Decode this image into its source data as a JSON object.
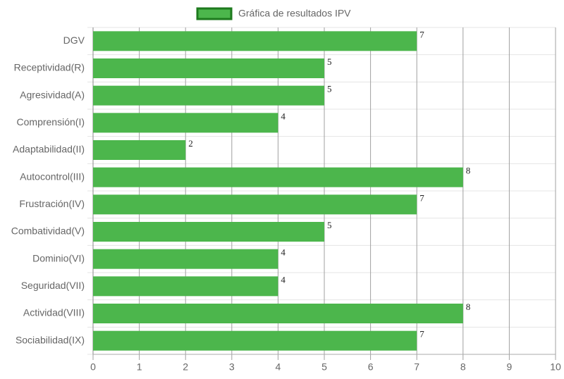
{
  "chart_data": {
    "type": "bar",
    "horizontal": true,
    "categories": [
      "DGV",
      "Receptividad(R)",
      "Agresividad(A)",
      "Comprensión(I)",
      "Adaptabilidad(II)",
      "Autocontrol(III)",
      "Frustración(IV)",
      "Combatividad(V)",
      "Dominio(VI)",
      "Seguridad(VII)",
      "Actividad(VIII)",
      "Sociabilidad(IX)"
    ],
    "series": [
      {
        "name": "Gráfica de resultados IPV",
        "color": "#4cb64c",
        "border": "#1e7a1e",
        "values": [
          7,
          5,
          5,
          4,
          2,
          8,
          7,
          5,
          4,
          4,
          8,
          7
        ]
      }
    ],
    "xlim": [
      0,
      10
    ],
    "xticks": [
      0,
      1,
      2,
      3,
      4,
      5,
      6,
      7,
      8,
      9,
      10
    ],
    "grid": true,
    "data_labels": true,
    "legend": "top"
  }
}
